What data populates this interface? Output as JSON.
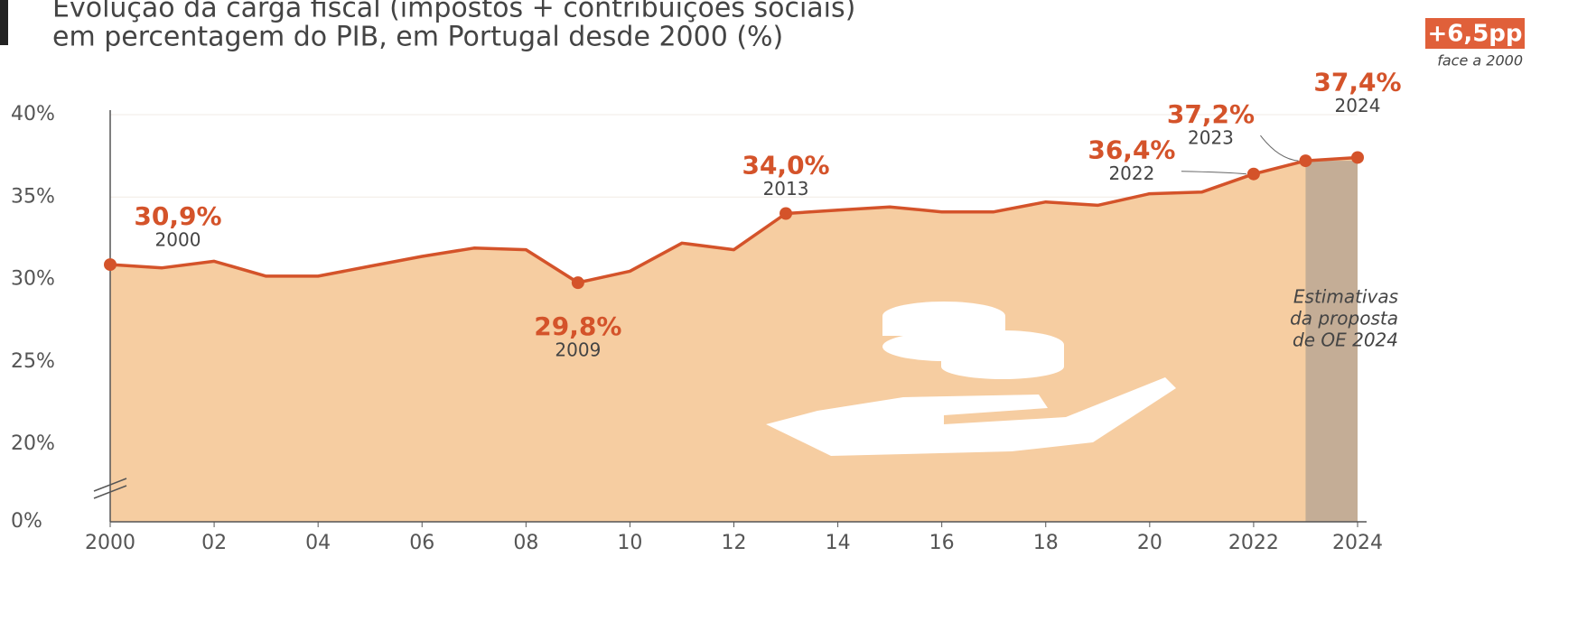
{
  "chart_data": {
    "type": "area",
    "title": [
      "Evolução da carga fiscal (impostos + contribuições sociais)",
      "em percentagem do PIB, em Portugal desde 2000 (%)"
    ],
    "badge": "+6,5pp",
    "badge_note": "face a 2000",
    "x": [
      2000,
      2001,
      2002,
      2003,
      2004,
      2005,
      2006,
      2007,
      2008,
      2009,
      2010,
      2011,
      2012,
      2013,
      2014,
      2015,
      2016,
      2017,
      2018,
      2019,
      2020,
      2021,
      2022,
      2023,
      2024
    ],
    "values": [
      30.9,
      30.7,
      31.1,
      30.2,
      30.2,
      30.8,
      31.4,
      31.9,
      31.8,
      29.8,
      30.5,
      32.2,
      31.8,
      34.0,
      34.2,
      34.4,
      34.1,
      34.1,
      34.7,
      34.5,
      35.2,
      35.3,
      36.4,
      37.2,
      37.4
    ],
    "value_labels": [
      "30,9%",
      null,
      null,
      null,
      null,
      null,
      null,
      null,
      null,
      "29,8%",
      null,
      null,
      null,
      "34,0%",
      null,
      null,
      null,
      null,
      null,
      null,
      null,
      null,
      "36,4%",
      "37,2%",
      "37,4%"
    ],
    "point_labels": [
      "2000",
      null,
      null,
      null,
      null,
      null,
      null,
      null,
      null,
      "2009",
      null,
      null,
      null,
      "2013",
      null,
      null,
      null,
      null,
      null,
      null,
      null,
      null,
      "2022",
      "2023",
      "2024"
    ],
    "color": "#d4532a",
    "fill_color": "#f6cda1",
    "xlim": [
      2000,
      2024
    ],
    "xticks": [
      2000,
      {
        "value": 2002,
        "label": "02"
      },
      {
        "value": 2004,
        "label": "04"
      },
      {
        "value": 2006,
        "label": "06"
      },
      {
        "value": 2008,
        "label": "08"
      },
      {
        "value": 2010,
        "label": "10"
      },
      {
        "value": 2012,
        "label": "12"
      },
      {
        "value": 2014,
        "label": "14"
      },
      {
        "value": 2016,
        "label": "16"
      },
      {
        "value": 2018,
        "label": "18"
      },
      {
        "value": 2020,
        "label": "20"
      },
      2022,
      2024
    ],
    "ylim": [
      0,
      40
    ],
    "axis_break": [
      0,
      20
    ],
    "yticks": [
      {
        "value": 0,
        "label": "0%"
      },
      {
        "value": 20,
        "label": "20%"
      },
      {
        "value": 25,
        "label": "25%"
      },
      {
        "value": 30,
        "label": "30%"
      },
      {
        "value": 35,
        "label": "35%"
      },
      {
        "value": 40,
        "label": "40%"
      }
    ],
    "grid": true,
    "shaded_region": {
      "x": [
        2023,
        2024
      ],
      "color": "#c4ad96",
      "label": [
        "Estimativas",
        "da proposta",
        "de OE 2024"
      ]
    }
  }
}
